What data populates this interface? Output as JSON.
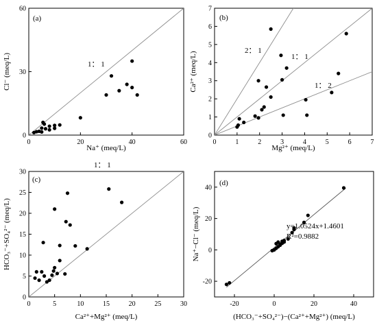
{
  "chart_data": [
    {
      "type": "scatter",
      "panel": "(a)",
      "xlabel": "Na⁺ (meq/L)",
      "ylabel": "Cl⁻ (meq/L)",
      "xlim": [
        0,
        60
      ],
      "ylim": [
        0,
        60
      ],
      "xticks": [
        "0",
        "20",
        "40",
        "60"
      ],
      "yticks": [
        "0",
        "30",
        "60"
      ],
      "lines": [
        {
          "label": "1： 1",
          "slope": 1,
          "intercept": 0
        }
      ],
      "points": [
        [
          2,
          1.2
        ],
        [
          3,
          1.6
        ],
        [
          4,
          1.8
        ],
        [
          5,
          1.5
        ],
        [
          5.5,
          6
        ],
        [
          6,
          5.2
        ],
        [
          5,
          3.3
        ],
        [
          6.5,
          3
        ],
        [
          8,
          2.5
        ],
        [
          8,
          4.2
        ],
        [
          10,
          3.2
        ],
        [
          10,
          4.6
        ],
        [
          12,
          4.8
        ],
        [
          20,
          8.2
        ],
        [
          30,
          19
        ],
        [
          32,
          28
        ],
        [
          35,
          21
        ],
        [
          38,
          24
        ],
        [
          40,
          35
        ],
        [
          40,
          22.5
        ],
        [
          42,
          19
        ]
      ]
    },
    {
      "type": "scatter",
      "panel": "(b)",
      "xlabel": "Mg²⁺ (meq/L)",
      "ylabel": "Ca²⁺ (meq/L)",
      "xlim": [
        0,
        7
      ],
      "ylim": [
        0,
        7
      ],
      "xticks": [
        "0",
        "1",
        "2",
        "3",
        "4",
        "5",
        "6",
        "7"
      ],
      "yticks": [
        "0",
        "1",
        "2",
        "3",
        "4",
        "5",
        "6",
        "7"
      ],
      "lines": [
        {
          "label": "2： 1",
          "slope": 2,
          "intercept": 0
        },
        {
          "label": "1： 1",
          "slope": 1,
          "intercept": 0
        },
        {
          "label": "1： 2",
          "slope": 0.5,
          "intercept": 0
        }
      ],
      "points": [
        [
          1,
          0.45
        ],
        [
          1.05,
          0.55
        ],
        [
          1.1,
          0.9
        ],
        [
          1.3,
          0.7
        ],
        [
          1.8,
          1.05
        ],
        [
          1.95,
          0.95
        ],
        [
          2.1,
          1.4
        ],
        [
          2.2,
          1.55
        ],
        [
          1.95,
          3
        ],
        [
          2.3,
          2.65
        ],
        [
          2.5,
          2.1
        ],
        [
          2.5,
          5.85
        ],
        [
          2.95,
          4.4
        ],
        [
          3,
          3.05
        ],
        [
          3.05,
          1.1
        ],
        [
          3.2,
          3.7
        ],
        [
          4.05,
          1.95
        ],
        [
          4.1,
          1.1
        ],
        [
          5.2,
          2.35
        ],
        [
          5.5,
          3.4
        ],
        [
          5.85,
          5.6
        ]
      ]
    },
    {
      "type": "scatter",
      "panel": "(c)",
      "xlabel": "Ca²⁺+Mg²⁺ (meq/L)",
      "ylabel": "HCO₃⁻+SO₄²⁻ (meq/L)",
      "xlim": [
        0,
        30
      ],
      "ylim": [
        0,
        30
      ],
      "xticks": [
        "0",
        "5",
        "10",
        "15",
        "20",
        "25",
        "30"
      ],
      "yticks": [
        "0",
        "5",
        "10",
        "15",
        "20",
        "25",
        "30"
      ],
      "lines": [
        {
          "label": "1： 1",
          "slope": 1,
          "intercept": 0
        }
      ],
      "points": [
        [
          1.2,
          4.5
        ],
        [
          1.5,
          6
        ],
        [
          2,
          4
        ],
        [
          2.5,
          6
        ],
        [
          2.8,
          13
        ],
        [
          3,
          5
        ],
        [
          3.5,
          3.6
        ],
        [
          4,
          4
        ],
        [
          4.5,
          5.2
        ],
        [
          4.8,
          6.2
        ],
        [
          5,
          7
        ],
        [
          5,
          21
        ],
        [
          5.5,
          5.6
        ],
        [
          6,
          8.7
        ],
        [
          6,
          12.3
        ],
        [
          7,
          5.5
        ],
        [
          7.2,
          18
        ],
        [
          7.5,
          24.8
        ],
        [
          8,
          17.2
        ],
        [
          9,
          12.2
        ],
        [
          11.3,
          11.5
        ],
        [
          15.5,
          25.8
        ],
        [
          18,
          22.6
        ]
      ]
    },
    {
      "type": "scatter",
      "panel": "(d)",
      "xlabel": "(HCO₃⁻+SO₄²⁻)−(Ca²⁺+Mg²⁺) (meq/L)",
      "ylabel": "Na⁺−Cl⁻ (meq/L)",
      "xlim": [
        -30,
        50
      ],
      "ylim": [
        -30,
        50
      ],
      "xticks": [
        "-20",
        "0",
        "20",
        "40"
      ],
      "yticks": [
        "-20",
        "0",
        "20",
        "40"
      ],
      "equation": "y=1.0524x+1.4601",
      "r2": "R²=0.9882",
      "fit": {
        "slope": 1.0524,
        "intercept": 1.4601,
        "x_range": [
          -24,
          36
        ]
      },
      "points": [
        [
          -24,
          -22
        ],
        [
          -22.5,
          -21
        ],
        [
          -1,
          -0.5
        ],
        [
          0,
          0
        ],
        [
          1,
          1
        ],
        [
          1,
          4
        ],
        [
          2,
          2
        ],
        [
          2,
          5
        ],
        [
          3,
          3
        ],
        [
          3,
          3.5
        ],
        [
          4,
          4.2
        ],
        [
          4,
          5.5
        ],
        [
          5,
          5
        ],
        [
          5,
          6
        ],
        [
          7,
          7
        ],
        [
          9,
          11
        ],
        [
          10,
          13
        ],
        [
          10,
          14
        ],
        [
          15,
          17.5
        ],
        [
          17,
          22
        ],
        [
          35,
          39.5
        ]
      ]
    }
  ]
}
